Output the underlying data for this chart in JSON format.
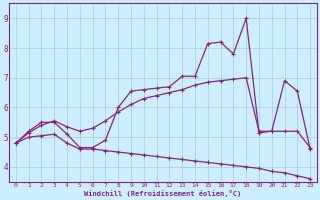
{
  "xlabel": "Windchill (Refroidissement éolien,°C)",
  "x_values": [
    0,
    1,
    2,
    3,
    4,
    5,
    6,
    7,
    8,
    9,
    10,
    11,
    12,
    13,
    14,
    15,
    16,
    17,
    18,
    19,
    20,
    21,
    22,
    23
  ],
  "line_spiky": [
    4.8,
    5.2,
    5.5,
    5.5,
    5.1,
    4.65,
    4.65,
    4.9,
    6.0,
    6.55,
    6.6,
    6.65,
    6.7,
    7.05,
    7.05,
    8.15,
    8.2,
    7.8,
    9.0,
    5.15,
    5.2,
    6.9,
    6.55,
    4.6
  ],
  "line_upper": [
    4.8,
    5.15,
    5.4,
    5.55,
    5.35,
    5.2,
    5.3,
    5.55,
    5.85,
    6.1,
    6.3,
    6.4,
    6.5,
    6.6,
    6.75,
    6.85,
    6.9,
    6.95,
    7.0,
    5.2,
    5.2,
    5.2,
    5.2,
    4.65
  ],
  "line_lower": [
    4.8,
    5.0,
    5.05,
    5.1,
    4.8,
    4.6,
    4.6,
    4.55,
    4.5,
    4.45,
    4.4,
    4.35,
    4.3,
    4.25,
    4.2,
    4.15,
    4.1,
    4.05,
    4.0,
    3.95,
    3.85,
    3.8,
    3.7,
    3.6
  ],
  "line_color": "#882288",
  "bg_color": "#cceeff",
  "grid_color": "#aacccc",
  "ylim": [
    3.5,
    9.5
  ],
  "yticks": [
    4,
    5,
    6,
    7,
    8,
    9
  ],
  "xticks": [
    0,
    1,
    2,
    3,
    4,
    5,
    6,
    7,
    8,
    9,
    10,
    11,
    12,
    13,
    14,
    15,
    16,
    17,
    18,
    19,
    20,
    21,
    22,
    23
  ]
}
